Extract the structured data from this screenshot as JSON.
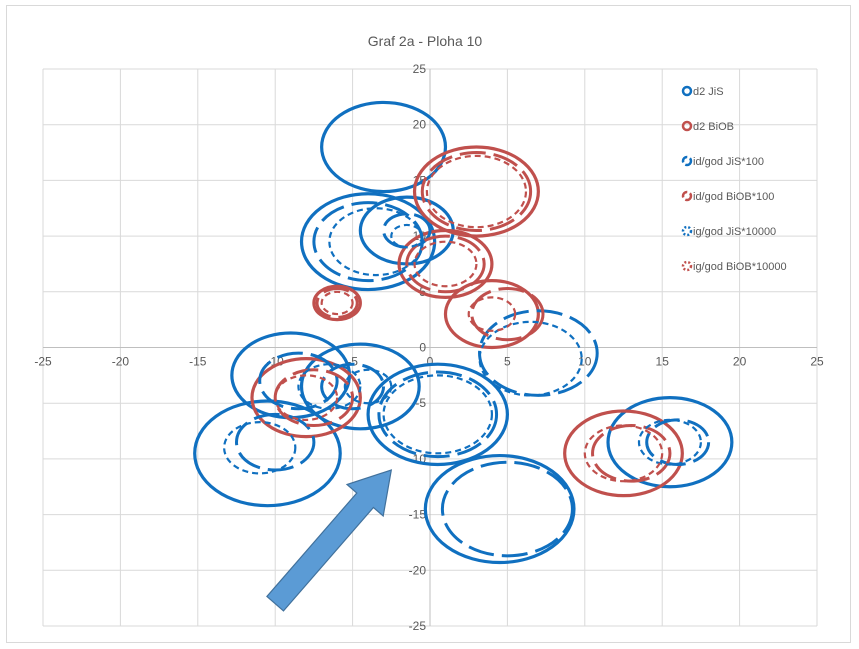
{
  "chart_data": {
    "type": "scatter",
    "title": "Graf 2a - Ploha 10",
    "xlabel": "",
    "ylabel": "",
    "xlim": [
      -25,
      25
    ],
    "ylim": [
      -25,
      25
    ],
    "x_ticks": [
      "-25",
      "-20",
      "-15",
      "-10",
      "-5",
      "0",
      "5",
      "10",
      "15",
      "20",
      "25"
    ],
    "y_ticks": [
      "25",
      "20",
      "15",
      "10",
      "5",
      "0",
      "-5",
      "-10",
      "-15",
      "-20",
      "-25"
    ],
    "grid": true,
    "legend_position": "top-right",
    "colors": {
      "blue": "#1070c0",
      "red": "#c0504d",
      "arrow": "#5b9bd5",
      "arrow_border": "#41719c",
      "grid": "#d9d9d9",
      "axis": "#bfbfbf"
    },
    "series": [
      {
        "name": "d2 JiS",
        "color": "#1070c0",
        "style": "solid",
        "points": [
          {
            "x": -3,
            "y": 18,
            "r": 4.0
          },
          {
            "x": -4,
            "y": 9.5,
            "r": 4.3
          },
          {
            "x": -1.5,
            "y": 10.5,
            "r": 3.0
          },
          {
            "x": -9,
            "y": -2.5,
            "r": 3.8
          },
          {
            "x": -4.5,
            "y": -3.5,
            "r": 3.8
          },
          {
            "x": 0.5,
            "y": -6,
            "r": 4.5
          },
          {
            "x": 4.5,
            "y": -14.5,
            "r": 4.8
          },
          {
            "x": 15.5,
            "y": -8.5,
            "r": 4.0
          },
          {
            "x": -10.5,
            "y": -9.5,
            "r": 4.7
          }
        ]
      },
      {
        "name": "d2 BiOB",
        "color": "#c0504d",
        "style": "solid",
        "points": [
          {
            "x": 3,
            "y": 14,
            "r": 4.0
          },
          {
            "x": 1,
            "y": 7.5,
            "r": 3.0
          },
          {
            "x": 4,
            "y": 3,
            "r": 3.0
          },
          {
            "x": -6,
            "y": 4,
            "r": 1.5
          },
          {
            "x": -8,
            "y": -4.5,
            "r": 3.5
          },
          {
            "x": 12.5,
            "y": -9.5,
            "r": 3.8
          }
        ]
      },
      {
        "name": "id/god JiS*100",
        "color": "#1070c0",
        "style": "dash",
        "points": [
          {
            "x": -4,
            "y": 9.5,
            "r": 3.5
          },
          {
            "x": -1.5,
            "y": 10.5,
            "r": 1.5
          },
          {
            "x": 7,
            "y": -0.5,
            "r": 3.8
          },
          {
            "x": -8.5,
            "y": -3,
            "r": 2.5
          },
          {
            "x": -5,
            "y": -3.5,
            "r": 2.0
          },
          {
            "x": 5,
            "y": -14.5,
            "r": 4.2
          },
          {
            "x": 16,
            "y": -8.5,
            "r": 2.0
          },
          {
            "x": 0.5,
            "y": -6,
            "r": 3.8
          },
          {
            "x": -10,
            "y": -8.5,
            "r": 2.5
          }
        ]
      },
      {
        "name": "id/god BiOB*100",
        "color": "#c0504d",
        "style": "dash",
        "points": [
          {
            "x": 3,
            "y": 14,
            "r": 3.5
          },
          {
            "x": 1,
            "y": 7.5,
            "r": 2.5
          },
          {
            "x": 5,
            "y": 3,
            "r": 2.3
          },
          {
            "x": -6,
            "y": 4,
            "r": 1.3
          },
          {
            "x": -7.5,
            "y": -4.5,
            "r": 2.5
          },
          {
            "x": 13,
            "y": -9.5,
            "r": 2.5
          }
        ]
      },
      {
        "name": "ig/god JiS*10000",
        "color": "#1070c0",
        "style": "dot",
        "points": [
          {
            "x": -3.5,
            "y": 9.5,
            "r": 3.0
          },
          {
            "x": -1.5,
            "y": 10,
            "r": 1.0
          },
          {
            "x": 6.5,
            "y": -1,
            "r": 3.3
          },
          {
            "x": -6.5,
            "y": -3.5,
            "r": 2.0
          },
          {
            "x": -4,
            "y": -3.5,
            "r": 1.5
          },
          {
            "x": 0.5,
            "y": -6,
            "r": 3.5
          },
          {
            "x": 15.5,
            "y": -8.5,
            "r": 2.0
          },
          {
            "x": -11,
            "y": -9,
            "r": 2.3
          }
        ]
      },
      {
        "name": "ig/god BiOB*10000",
        "color": "#c0504d",
        "style": "dot",
        "points": [
          {
            "x": 3,
            "y": 14,
            "r": 3.2
          },
          {
            "x": 1,
            "y": 7.5,
            "r": 2.0
          },
          {
            "x": 4,
            "y": 3,
            "r": 1.5
          },
          {
            "x": -6,
            "y": 4,
            "r": 1.0
          },
          {
            "x": -8,
            "y": -4.5,
            "r": 2.0
          },
          {
            "x": 12.5,
            "y": -9.5,
            "r": 2.5
          }
        ]
      }
    ],
    "annotation": {
      "type": "arrow",
      "from": {
        "x": -10,
        "y": -23
      },
      "to": {
        "x": -2.5,
        "y": -11
      }
    }
  }
}
